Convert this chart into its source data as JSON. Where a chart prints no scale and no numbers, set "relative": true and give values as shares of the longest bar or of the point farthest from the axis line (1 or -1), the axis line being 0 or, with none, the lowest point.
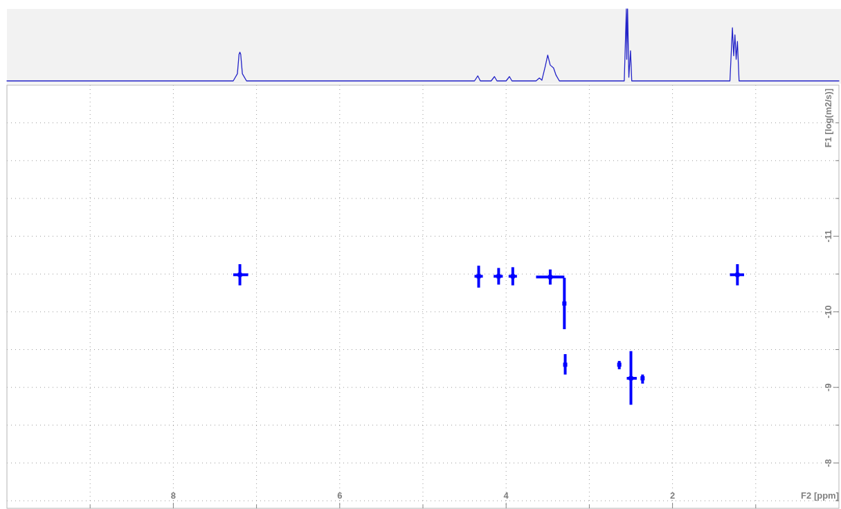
{
  "chart_data": [
    {
      "type": "line",
      "relative": true,
      "xlim": [
        10,
        0
      ],
      "tick_labels": false,
      "x": [
        10,
        7.28,
        7.23,
        7.21,
        7.2,
        7.19,
        7.17,
        7.12,
        4.38,
        4.34,
        4.31,
        4.18,
        4.14,
        4.11,
        4.0,
        3.96,
        3.93,
        3.64,
        3.6,
        3.57,
        3.53,
        3.5,
        3.47,
        3.43,
        3.4,
        3.36,
        2.58,
        2.555,
        2.55,
        2.54,
        2.525,
        2.505,
        2.49,
        1.31,
        1.28,
        1.265,
        1.25,
        1.235,
        1.22,
        1.2,
        0
      ],
      "series": [
        {
          "color": "#2323c8",
          "values": [
            0,
            0,
            0.1,
            0.37,
            0.4,
            0.37,
            0.1,
            0,
            0,
            0.07,
            0,
            0,
            0.06,
            0,
            0,
            0.06,
            0,
            0,
            0.04,
            0.01,
            0.2,
            0.36,
            0.22,
            0.18,
            0.08,
            0,
            0,
            1,
            0.3,
            1,
            0.05,
            0.42,
            0,
            0,
            0.74,
            0.35,
            0.64,
            0.3,
            0.55,
            0,
            0
          ]
        }
      ]
    },
    {
      "type": "scatter",
      "marker": "square",
      "grid": true,
      "xlabel": "F2 [ppm]",
      "ylabel": "F1 [log(m2/s)]",
      "xlim": [
        10,
        0
      ],
      "xticks": [
        {
          "value": 9,
          "label": null
        },
        8,
        {
          "value": 7,
          "label": null
        },
        6,
        {
          "value": 5,
          "label": null
        },
        4,
        {
          "value": 3,
          "label": null
        },
        2,
        {
          "value": 1,
          "label": null
        }
      ],
      "ylim": [
        -7.4,
        -13
      ],
      "yticks": [
        {
          "value": -12.5,
          "label": null
        },
        {
          "value": -12,
          "label": null
        },
        {
          "value": -11.5,
          "label": null
        },
        -11,
        {
          "value": -10.5,
          "label": null
        },
        -10,
        {
          "value": -9.5,
          "label": null
        },
        -9,
        {
          "value": -8.5,
          "label": null
        },
        -8,
        {
          "value": -7.5,
          "label": null
        }
      ],
      "x": [
        7.2,
        4.33,
        4.09,
        3.92,
        3.47,
        3.3,
        3.29,
        2.64,
        2.5,
        2.36,
        1.22
      ],
      "series": [
        {
          "color": "#0000ff",
          "values": [
            -10.49,
            -10.47,
            -10.47,
            -10.47,
            -10.46,
            -10.11,
            -9.3,
            -9.3,
            -9.12,
            -9.12,
            -10.49
          ],
          "errors": [
            [
              -10.63,
              -10.35
            ],
            [
              -10.61,
              -10.32
            ],
            [
              -10.58,
              -10.36
            ],
            [
              -10.59,
              -10.35
            ],
            [
              -10.56,
              -10.36
            ],
            [
              -10.45,
              -9.77
            ],
            [
              -9.44,
              -9.17
            ],
            [
              -9.35,
              -9.24
            ],
            [
              -9.48,
              -8.77
            ],
            [
              -9.17,
              -9.05
            ],
            [
              -10.63,
              -10.35
            ]
          ],
          "xerrors": [
            [
              7.1,
              7.28
            ],
            [
              4.28,
              4.38
            ],
            [
              4.04,
              4.15
            ],
            [
              3.87,
              3.97
            ],
            [
              3.3,
              3.64
            ],
            null,
            null,
            null,
            [
              2.43,
              2.55
            ],
            null,
            [
              1.14,
              1.31
            ]
          ]
        }
      ]
    }
  ]
}
